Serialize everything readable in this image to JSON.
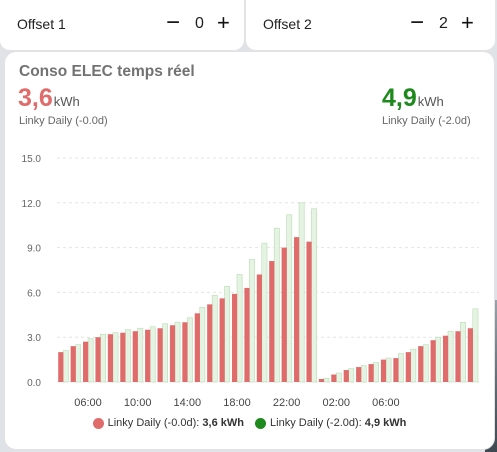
{
  "offset1": {
    "label": "Offset 1",
    "value": "0",
    "minus": "−",
    "plus": "+"
  },
  "offset2": {
    "label": "Offset 2",
    "value": "2",
    "minus": "−",
    "plus": "+"
  },
  "card": {
    "title": "Conso ELEC temps réel",
    "primary": {
      "value": "3,6",
      "unit": "kWh",
      "label": "Linky Daily (-0.0d)",
      "color": "#e06b6b"
    },
    "secondary": {
      "value": "4,9",
      "unit": "kWh",
      "label": "Linky Daily (-2.0d)",
      "color": "#1e8a1e"
    }
  },
  "legend": [
    {
      "label": "Linky Daily (-0.0d):",
      "value": "3,6 kWh",
      "color": "#e06b6b"
    },
    {
      "label": "Linky Daily (-2.0d):",
      "value": "4,9 kWh",
      "color": "#1e8a1e"
    }
  ],
  "chart_data": {
    "type": "bar",
    "ylim": [
      0,
      15
    ],
    "yticks": [
      "15.0",
      "12.0",
      "9.0",
      "6.0",
      "3.0",
      "0.0"
    ],
    "xticks": [
      "06:00",
      "10:00",
      "14:00",
      "18:00",
      "22:00",
      "02:00",
      "06:00"
    ],
    "x_start_hour": 4,
    "series": [
      {
        "name": "Linky Daily (-0.0d)",
        "color": "#e06b6b",
        "values": [
          2.0,
          2.4,
          2.7,
          3.0,
          3.2,
          3.3,
          3.4,
          3.5,
          3.6,
          3.8,
          4.0,
          4.6,
          5.2,
          5.6,
          5.9,
          6.3,
          7.2,
          8.1,
          9.0,
          9.7,
          9.4,
          0.2,
          0.5,
          0.8,
          1.0,
          1.2,
          1.5,
          1.6,
          2.0,
          2.4,
          2.8,
          3.1,
          3.4,
          3.6
        ]
      },
      {
        "name": "Linky Daily (-2.0d)",
        "color": "#1e8a1e",
        "values": [
          2.1,
          2.5,
          2.9,
          3.2,
          3.3,
          3.5,
          3.6,
          3.7,
          3.9,
          4.0,
          4.3,
          5.0,
          5.8,
          6.4,
          7.2,
          8.2,
          9.3,
          10.3,
          11.2,
          12.0,
          11.6,
          0.25,
          0.6,
          0.9,
          1.1,
          1.3,
          1.6,
          1.9,
          2.2,
          2.5,
          3.0,
          3.4,
          4.0,
          4.9
        ]
      }
    ]
  }
}
